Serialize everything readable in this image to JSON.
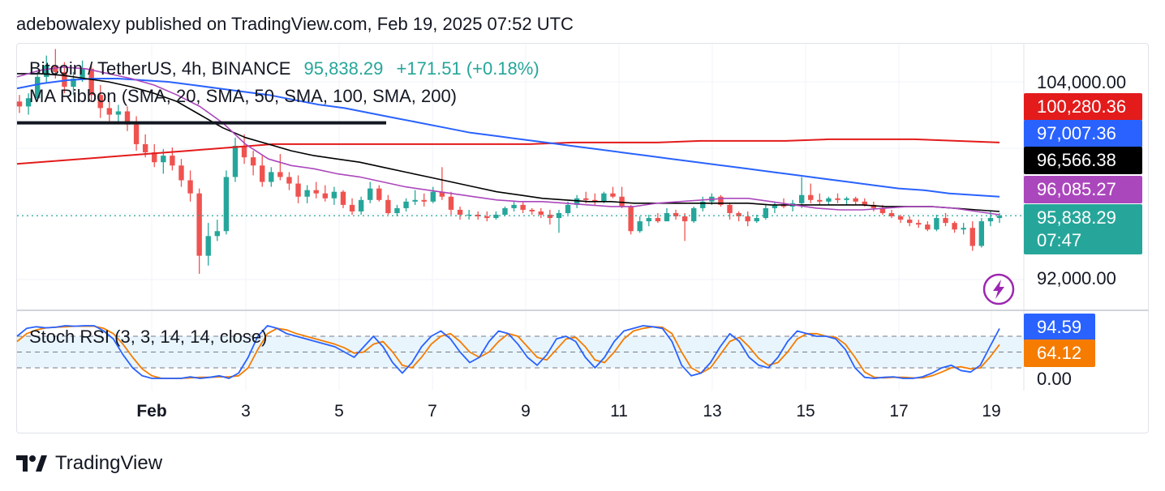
{
  "header": {
    "published": "adebowalexy published on TradingView.com, Feb 19, 2025 07:52 UTC"
  },
  "legend": {
    "symbol": "Bitcoin / TetherUS, 4h, BINANCE",
    "price": "95,838.29",
    "change": "+171.51 (+0.18%)",
    "indicator": "MA Ribbon (SMA, 20, SMA, 50, SMA, 100, SMA, 200)",
    "oscillator": "Stoch RSI (3, 3, 14, 14, close)"
  },
  "price_axis": {
    "top": "104,000.00",
    "bottom": "92,000.00"
  },
  "tags": {
    "sma200": "100,280.36",
    "sma100": "97,007.36",
    "sma50": "96,566.38",
    "sma20": "96,085.27",
    "last_price": "95,838.29",
    "countdown": "07:47",
    "stoch_k": "94.59",
    "stoch_d": "64.12"
  },
  "osc_axis": {
    "zero": "0.00"
  },
  "x_axis": {
    "labels": [
      "Feb",
      "3",
      "5",
      "7",
      "9",
      "11",
      "13",
      "15",
      "17",
      "19"
    ]
  },
  "colors": {
    "up": "#26a69a",
    "down": "#ef5350",
    "sma20": "#ab47bc",
    "sma50": "#000000",
    "sma100": "#2962ff",
    "sma200": "#e31b1b",
    "stoch_k": "#2962ff",
    "stoch_d": "#f57c00"
  },
  "footer": {
    "brand": "TradingView",
    "logo_icon": "tradingview-logo-icon"
  },
  "chart_data": [
    {
      "type": "candlestick",
      "ylim": [
        90500,
        106000
      ],
      "price_ticks": [
        104000,
        92000
      ],
      "last_price": 95838.29,
      "x_labels": [
        "Feb",
        "3",
        "5",
        "7",
        "9",
        "11",
        "13",
        "15",
        "17",
        "19"
      ],
      "candles": [
        [
          102800,
          103200,
          102100,
          102500
        ],
        [
          102500,
          103300,
          102000,
          103000
        ],
        [
          103000,
          104600,
          102800,
          104300
        ],
        [
          104300,
          105600,
          103900,
          105000
        ],
        [
          105000,
          106000,
          104200,
          104600
        ],
        [
          104600,
          105200,
          103300,
          103700
        ],
        [
          103700,
          104600,
          103200,
          104200
        ],
        [
          104200,
          105300,
          104000,
          104800
        ],
        [
          104800,
          105100,
          102800,
          103200
        ],
        [
          103200,
          103800,
          101800,
          102400
        ],
        [
          102400,
          102800,
          101600,
          102000
        ],
        [
          102000,
          102600,
          101500,
          102200
        ],
        [
          102200,
          102500,
          101000,
          101400
        ],
        [
          101400,
          101900,
          99800,
          100200
        ],
        [
          100200,
          100800,
          99400,
          99700
        ],
        [
          99700,
          100200,
          98800,
          99100
        ],
        [
          99100,
          99900,
          98400,
          99500
        ],
        [
          99500,
          100000,
          98600,
          98900
        ],
        [
          98900,
          99300,
          97600,
          98000
        ],
        [
          98000,
          98600,
          96700,
          97200
        ],
        [
          97200,
          97500,
          92300,
          93400
        ],
        [
          93400,
          95400,
          92800,
          94600
        ],
        [
          94600,
          95600,
          94300,
          94900
        ],
        [
          94900,
          98600,
          94700,
          98200
        ],
        [
          98200,
          100600,
          97900,
          100100
        ],
        [
          100100,
          100800,
          99000,
          99400
        ],
        [
          99400,
          99800,
          98300,
          98900
        ],
        [
          98900,
          99500,
          97600,
          97900
        ],
        [
          97900,
          98800,
          97600,
          98500
        ],
        [
          98500,
          99600,
          98000,
          98200
        ],
        [
          98200,
          98500,
          97400,
          97800
        ],
        [
          97800,
          98300,
          96600,
          97000
        ],
        [
          97000,
          97700,
          96600,
          97400
        ],
        [
          97400,
          97900,
          96900,
          97200
        ],
        [
          97200,
          97700,
          96700,
          96900
        ],
        [
          96900,
          97600,
          96500,
          97300
        ],
        [
          97300,
          97400,
          96300,
          96500
        ],
        [
          96500,
          96900,
          95900,
          96100
        ],
        [
          96100,
          97000,
          95900,
          96800
        ],
        [
          96800,
          97900,
          96600,
          97500
        ],
        [
          97500,
          97700,
          96700,
          96800
        ],
        [
          96800,
          97100,
          95900,
          96000
        ],
        [
          96000,
          96500,
          95800,
          96300
        ],
        [
          96300,
          96900,
          96100,
          96700
        ],
        [
          96700,
          97400,
          96500,
          96800
        ],
        [
          96800,
          97200,
          96400,
          96700
        ],
        [
          96700,
          97600,
          96600,
          97300
        ],
        [
          97300,
          98800,
          96800,
          97000
        ],
        [
          97000,
          97300,
          95900,
          96200
        ],
        [
          96200,
          96400,
          95600,
          95900
        ],
        [
          95900,
          96200,
          95600,
          95900
        ],
        [
          95900,
          96100,
          95600,
          95800
        ],
        [
          95800,
          96100,
          95500,
          95700
        ],
        [
          95700,
          96100,
          95600,
          95900
        ],
        [
          95900,
          96400,
          95800,
          96300
        ],
        [
          96300,
          96700,
          96100,
          96500
        ],
        [
          96500,
          96700,
          96000,
          96200
        ],
        [
          96200,
          96300,
          95900,
          96100
        ],
        [
          96100,
          96300,
          95700,
          95900
        ],
        [
          95900,
          96200,
          95300,
          95700
        ],
        [
          95700,
          96200,
          94800,
          96000
        ],
        [
          96000,
          96700,
          95900,
          96500
        ],
        [
          96500,
          97100,
          96300,
          96900
        ],
        [
          96900,
          97300,
          96600,
          96800
        ],
        [
          96800,
          97200,
          96500,
          96700
        ],
        [
          96700,
          97300,
          96600,
          97200
        ],
        [
          97200,
          97600,
          96900,
          97000
        ],
        [
          97000,
          97600,
          96300,
          96400
        ],
        [
          96400,
          96500,
          94700,
          94900
        ],
        [
          94900,
          95800,
          94800,
          95500
        ],
        [
          95500,
          95900,
          95200,
          95700
        ],
        [
          95700,
          96000,
          95400,
          95500
        ],
        [
          95500,
          96300,
          95500,
          96000
        ],
        [
          96000,
          96200,
          95600,
          95800
        ],
        [
          95800,
          96000,
          94300,
          95500
        ],
        [
          95500,
          96400,
          95400,
          96300
        ],
        [
          96300,
          97000,
          96100,
          96700
        ],
        [
          96700,
          97200,
          96500,
          97000
        ],
        [
          97000,
          97100,
          96400,
          96500
        ],
        [
          96500,
          96600,
          95600,
          96000
        ],
        [
          96000,
          96100,
          95500,
          95800
        ],
        [
          95800,
          96100,
          95200,
          95500
        ],
        [
          95500,
          95900,
          95400,
          95700
        ],
        [
          95700,
          96500,
          95600,
          96300
        ],
        [
          96300,
          96700,
          96000,
          96500
        ],
        [
          96500,
          96900,
          96300,
          96400
        ],
        [
          96400,
          96800,
          96100,
          96600
        ],
        [
          96600,
          98200,
          96300,
          97100
        ],
        [
          97100,
          97800,
          96600,
          96800
        ],
        [
          96800,
          97200,
          96500,
          96700
        ],
        [
          96700,
          97000,
          96500,
          96900
        ],
        [
          96900,
          97200,
          96600,
          96800
        ],
        [
          96800,
          97000,
          96500,
          96900
        ],
        [
          96900,
          97000,
          96500,
          96700
        ],
        [
          96700,
          96900,
          96400,
          96500
        ],
        [
          96500,
          96700,
          96100,
          96300
        ],
        [
          96300,
          96500,
          95900,
          96000
        ],
        [
          96000,
          96200,
          95700,
          95800
        ],
        [
          95800,
          95900,
          95400,
          95600
        ],
        [
          95600,
          95800,
          95200,
          95400
        ],
        [
          95400,
          95600,
          95100,
          95300
        ],
        [
          95300,
          95500,
          94900,
          95000
        ],
        [
          95000,
          95900,
          94900,
          95700
        ],
        [
          95700,
          96000,
          95200,
          95400
        ],
        [
          95400,
          95500,
          94800,
          95000
        ],
        [
          95000,
          95400,
          94700,
          95100
        ],
        [
          95100,
          95500,
          93700,
          94000
        ],
        [
          94000,
          95700,
          93900,
          95500
        ],
        [
          95500,
          96100,
          95200,
          95700
        ],
        [
          95700,
          96000,
          95400,
          95838
        ]
      ],
      "ma_ribbon": {
        "sma20": [
          104300,
          104700,
          104900,
          104800,
          104500,
          104200,
          103800,
          103200,
          102500,
          101500,
          100200,
          99300,
          98900,
          98700,
          98400,
          98200,
          97900,
          97600,
          97400,
          97200,
          97000,
          96800,
          96700,
          96700,
          96600,
          96500,
          96400,
          96400,
          96600,
          96700,
          96800,
          96900,
          96900,
          96700,
          96500,
          96300,
          96200,
          96200,
          96300,
          96400,
          96400,
          96300,
          96100,
          95900
        ],
        "sma50": [
          104500,
          104500,
          104400,
          104200,
          104000,
          103700,
          103300,
          102800,
          102000,
          101200,
          100600,
          100200,
          99800,
          99500,
          99300,
          99100,
          98800,
          98500,
          98200,
          97900,
          97600,
          97300,
          97100,
          96900,
          96800,
          96700,
          96700,
          96600,
          96600,
          96600,
          96600,
          96600,
          96600,
          96500,
          96500,
          96500,
          96500,
          96500,
          96400,
          96400,
          96400,
          96300,
          96200,
          96100
        ],
        "sma100": [
          103600,
          103900,
          104100,
          104200,
          104200,
          104100,
          104000,
          103800,
          103600,
          103400,
          103200,
          102900,
          102600,
          102400,
          102100,
          101800,
          101500,
          101200,
          100900,
          100700,
          100500,
          100300,
          100100,
          99900,
          99700,
          99500,
          99300,
          99100,
          98900,
          98700,
          98500,
          98300,
          98100,
          97900,
          97700,
          97500,
          97400,
          97200,
          97100,
          97000
        ],
        "sma200": [
          99000,
          99200,
          99400,
          99600,
          99800,
          100000,
          100200,
          100200,
          100200,
          100200,
          100200,
          100200,
          100200,
          100300,
          100300,
          100300,
          100400,
          100400,
          100400,
          100500,
          100500,
          100500,
          100400,
          100300
        ]
      },
      "horizontal_line": {
        "price": 101500,
        "x_range": [
          "Jan 31",
          "Feb 6"
        ]
      }
    },
    {
      "type": "line",
      "title": "Stoch RSI (3, 3, 14, 14, close)",
      "ylim": [
        0,
        100
      ],
      "levels": [
        80,
        50,
        20
      ],
      "series": [
        {
          "name": "K",
          "values": [
            80,
            95,
            98,
            96,
            97,
            100,
            99,
            100,
            100,
            90,
            75,
            45,
            20,
            5,
            0,
            0,
            0,
            0,
            3,
            0,
            2,
            5,
            0,
            10,
            40,
            80,
            100,
            95,
            85,
            80,
            75,
            70,
            65,
            60,
            50,
            40,
            60,
            80,
            60,
            30,
            10,
            30,
            60,
            80,
            90,
            75,
            50,
            30,
            40,
            70,
            90,
            85,
            65,
            40,
            25,
            45,
            75,
            80,
            70,
            40,
            20,
            40,
            70,
            90,
            95,
            100,
            98,
            95,
            70,
            25,
            5,
            10,
            30,
            60,
            85,
            70,
            40,
            25,
            20,
            40,
            70,
            90,
            85,
            80,
            80,
            75,
            55,
            20,
            2,
            0,
            2,
            3,
            0,
            0,
            3,
            10,
            20,
            25,
            15,
            12,
            25,
            60,
            94.59
          ]
        },
        {
          "name": "D",
          "values": [
            70,
            85,
            92,
            96,
            97,
            98,
            99,
            99,
            99,
            95,
            85,
            65,
            40,
            18,
            5,
            0,
            0,
            0,
            1,
            2,
            2,
            3,
            3,
            5,
            20,
            55,
            85,
            95,
            92,
            85,
            80,
            75,
            70,
            65,
            58,
            48,
            50,
            65,
            70,
            50,
            25,
            20,
            40,
            65,
            80,
            85,
            70,
            50,
            40,
            50,
            70,
            85,
            80,
            60,
            40,
            35,
            55,
            75,
            78,
            60,
            35,
            30,
            50,
            75,
            90,
            95,
            98,
            97,
            85,
            50,
            20,
            10,
            20,
            45,
            70,
            78,
            60,
            38,
            25,
            30,
            50,
            75,
            85,
            85,
            80,
            78,
            65,
            40,
            12,
            2,
            1,
            2,
            2,
            1,
            1,
            5,
            12,
            20,
            22,
            18,
            20,
            40,
            64.12
          ]
        }
      ]
    }
  ]
}
